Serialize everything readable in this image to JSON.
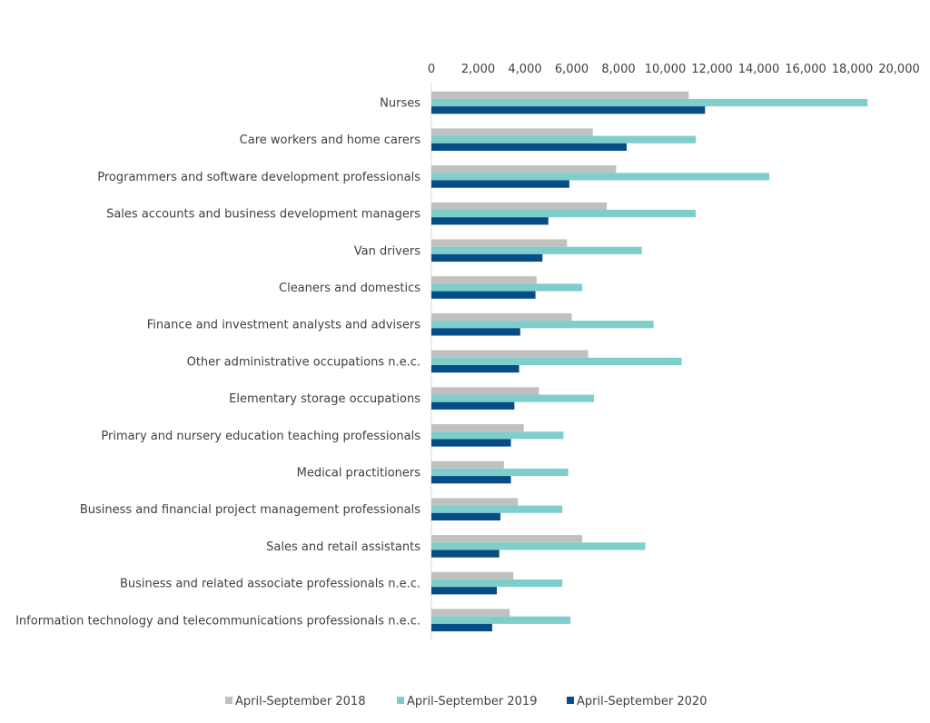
{
  "chart_data": {
    "type": "bar",
    "orientation": "horizontal",
    "title": "",
    "xlabel": "",
    "ylabel": "",
    "xlim": [
      0,
      20000
    ],
    "xticks": [
      0,
      2000,
      4000,
      6000,
      8000,
      10000,
      12000,
      14000,
      16000,
      18000,
      20000
    ],
    "xtick_labels": [
      "0",
      "2,000",
      "4,000",
      "6,000",
      "8,000",
      "10,000",
      "12,000",
      "14,000",
      "16,000",
      "18,000",
      "20,000"
    ],
    "x_axis_position": "top",
    "grid": false,
    "legend_position": "bottom",
    "categories": [
      "Nurses",
      "Care workers and home carers",
      "Programmers and software development professionals",
      "Sales accounts and business development managers",
      "Van drivers",
      "Cleaners and domestics",
      "Finance and investment analysts and advisers",
      "Other administrative occupations n.e.c.",
      "Elementary storage occupations",
      "Primary and nursery education teaching professionals",
      "Medical practitioners",
      "Business and financial project management professionals",
      "Sales and retail assistants",
      "Business and related associate professionals n.e.c.",
      "Information technology and telecommunications professionals n.e.c."
    ],
    "series": [
      {
        "name": "April-September 2018",
        "color": "#c0c0c0",
        "values": [
          11000,
          6900,
          7900,
          7500,
          5800,
          4500,
          6000,
          6700,
          4600,
          3950,
          3100,
          3700,
          6450,
          3500,
          3350
        ]
      },
      {
        "name": "April-September 2019",
        "color": "#7ecfcc",
        "values": [
          18650,
          11300,
          14450,
          11300,
          9000,
          6450,
          9500,
          10700,
          6950,
          5650,
          5850,
          5600,
          9150,
          5600,
          5950
        ]
      },
      {
        "name": "April-September 2020",
        "color": "#064d85",
        "values": [
          11700,
          8350,
          5900,
          5000,
          4750,
          4450,
          3800,
          3750,
          3550,
          3400,
          3400,
          2950,
          2900,
          2800,
          2600
        ]
      }
    ]
  }
}
